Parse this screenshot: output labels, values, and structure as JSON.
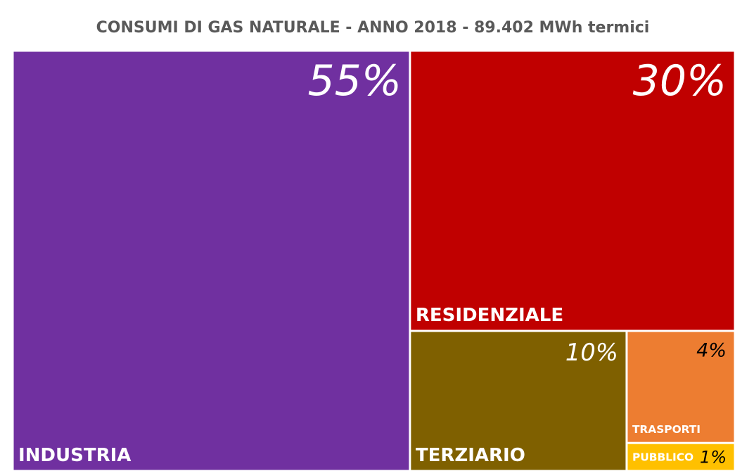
{
  "chart_data": {
    "type": "treemap",
    "title": "CONSUMI DI GAS NATURALE - ANNO 2018 - 89.402 MWh termici",
    "categories": [
      "INDUSTRIA",
      "RESIDENZIALE",
      "TERZIARIO",
      "TRASPORTI",
      "PUBBLICO"
    ],
    "values": [
      55,
      30,
      10,
      4,
      1
    ],
    "value_labels": [
      "55%",
      "30%",
      "10%",
      "4%",
      "1%"
    ],
    "colors": [
      "#7030a0",
      "#c00000",
      "#7f6000",
      "#ed7d31",
      "#ffc000"
    ],
    "label_colors": [
      "#ffffff",
      "#ffffff",
      "#ffffff",
      "#000000",
      "#000000"
    ]
  }
}
